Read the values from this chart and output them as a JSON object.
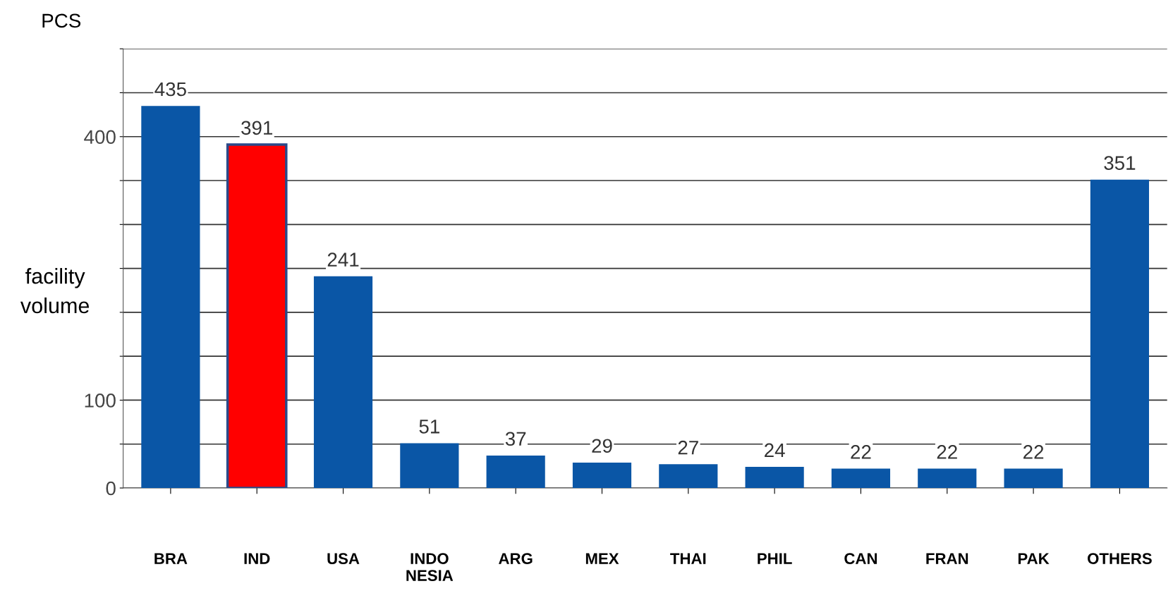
{
  "chart_data": {
    "type": "bar",
    "categories": [
      "BRA",
      "IND",
      "USA",
      "INDO\nNESIA",
      "ARG",
      "MEX",
      "THAI",
      "PHIL",
      "CAN",
      "FRAN",
      "PAK",
      "OTHERS"
    ],
    "values": [
      435,
      391,
      241,
      51,
      37,
      29,
      27,
      24,
      22,
      22,
      22,
      351
    ],
    "colors": [
      "#0a56a6",
      "#ff0000",
      "#0a56a6",
      "#0a56a6",
      "#0a56a6",
      "#0a56a6",
      "#0a56a6",
      "#0a56a6",
      "#0a56a6",
      "#0a56a6",
      "#0a56a6",
      "#0a56a6"
    ],
    "ylabel": "facility\nvolume",
    "annotations": [
      "PCS"
    ],
    "ylim": [
      0,
      500
    ],
    "yticks": [
      0,
      {
        "value": 50,
        "label": null
      },
      100,
      {
        "value": 150,
        "label": null
      },
      {
        "value": 200,
        "label": null
      },
      {
        "value": 250,
        "label": null
      },
      {
        "value": 300,
        "label": null
      },
      {
        "value": 350,
        "label": null
      },
      400,
      {
        "value": 450,
        "label": null
      },
      {
        "value": 500,
        "label": null
      }
    ],
    "data_labels": true,
    "grid": "y"
  }
}
